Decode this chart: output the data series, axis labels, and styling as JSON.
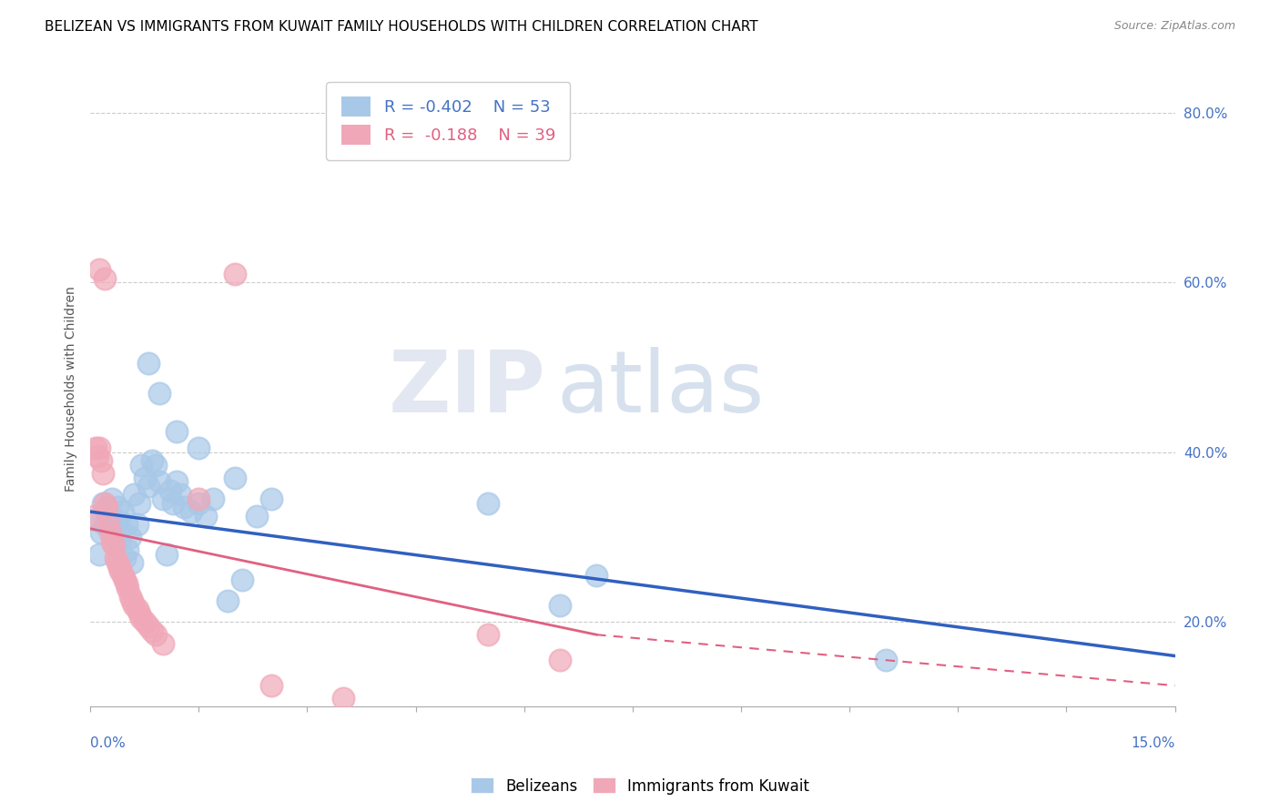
{
  "title": "BELIZEAN VS IMMIGRANTS FROM KUWAIT FAMILY HOUSEHOLDS WITH CHILDREN CORRELATION CHART",
  "source": "Source: ZipAtlas.com",
  "ylabel": "Family Households with Children",
  "xlim": [
    0.0,
    15.0
  ],
  "ylim": [
    10.0,
    85.0
  ],
  "yticks": [
    20.0,
    40.0,
    60.0,
    80.0
  ],
  "xticks": [
    0.0,
    1.5,
    3.0,
    4.5,
    6.0,
    7.5,
    9.0,
    10.5,
    12.0,
    13.5,
    15.0
  ],
  "legend1_r": "-0.402",
  "legend1_n": "53",
  "legend2_r": "-0.188",
  "legend2_n": "39",
  "blue_scatter_color": "#a8c8e8",
  "pink_scatter_color": "#f0a8b8",
  "blue_line_color": "#3060c0",
  "pink_line_color": "#e06080",
  "watermark_zip": "ZIP",
  "watermark_atlas": "atlas",
  "belizean_points": [
    [
      0.08,
      32.0
    ],
    [
      0.12,
      28.0
    ],
    [
      0.15,
      30.5
    ],
    [
      0.18,
      34.0
    ],
    [
      0.2,
      31.5
    ],
    [
      0.22,
      33.0
    ],
    [
      0.25,
      32.5
    ],
    [
      0.28,
      31.0
    ],
    [
      0.3,
      34.5
    ],
    [
      0.32,
      30.0
    ],
    [
      0.35,
      32.0
    ],
    [
      0.38,
      33.5
    ],
    [
      0.4,
      29.5
    ],
    [
      0.42,
      31.0
    ],
    [
      0.45,
      33.0
    ],
    [
      0.48,
      27.5
    ],
    [
      0.5,
      31.5
    ],
    [
      0.52,
      28.5
    ],
    [
      0.55,
      30.0
    ],
    [
      0.58,
      27.0
    ],
    [
      0.6,
      35.0
    ],
    [
      0.65,
      31.5
    ],
    [
      0.68,
      34.0
    ],
    [
      0.7,
      38.5
    ],
    [
      0.75,
      37.0
    ],
    [
      0.8,
      36.0
    ],
    [
      0.85,
      39.0
    ],
    [
      0.9,
      38.5
    ],
    [
      0.95,
      36.5
    ],
    [
      1.0,
      34.5
    ],
    [
      1.05,
      28.0
    ],
    [
      1.1,
      35.5
    ],
    [
      1.15,
      34.0
    ],
    [
      1.2,
      36.5
    ],
    [
      1.25,
      35.0
    ],
    [
      1.3,
      33.5
    ],
    [
      1.4,
      33.0
    ],
    [
      1.5,
      34.0
    ],
    [
      1.6,
      32.5
    ],
    [
      1.7,
      34.5
    ],
    [
      1.9,
      22.5
    ],
    [
      2.0,
      37.0
    ],
    [
      2.1,
      25.0
    ],
    [
      2.3,
      32.5
    ],
    [
      2.5,
      34.5
    ],
    [
      0.95,
      47.0
    ],
    [
      1.2,
      42.5
    ],
    [
      1.5,
      40.5
    ],
    [
      0.8,
      50.5
    ],
    [
      5.5,
      34.0
    ],
    [
      6.5,
      22.0
    ],
    [
      7.0,
      25.5
    ],
    [
      11.0,
      15.5
    ]
  ],
  "kuwait_points": [
    [
      0.05,
      32.5
    ],
    [
      0.08,
      40.5
    ],
    [
      0.1,
      39.5
    ],
    [
      0.12,
      40.5
    ],
    [
      0.15,
      39.0
    ],
    [
      0.18,
      37.5
    ],
    [
      0.2,
      34.0
    ],
    [
      0.22,
      33.5
    ],
    [
      0.25,
      32.0
    ],
    [
      0.28,
      30.5
    ],
    [
      0.3,
      29.5
    ],
    [
      0.32,
      29.0
    ],
    [
      0.35,
      27.5
    ],
    [
      0.38,
      27.0
    ],
    [
      0.4,
      26.5
    ],
    [
      0.42,
      26.0
    ],
    [
      0.45,
      25.5
    ],
    [
      0.48,
      25.0
    ],
    [
      0.5,
      24.5
    ],
    [
      0.52,
      24.0
    ],
    [
      0.55,
      23.0
    ],
    [
      0.58,
      22.5
    ],
    [
      0.6,
      22.0
    ],
    [
      0.65,
      21.5
    ],
    [
      0.68,
      21.0
    ],
    [
      0.7,
      20.5
    ],
    [
      0.75,
      20.0
    ],
    [
      0.8,
      19.5
    ],
    [
      0.85,
      19.0
    ],
    [
      0.9,
      18.5
    ],
    [
      1.0,
      17.5
    ],
    [
      0.12,
      61.5
    ],
    [
      2.0,
      61.0
    ],
    [
      1.5,
      34.5
    ],
    [
      2.5,
      12.5
    ],
    [
      3.5,
      11.0
    ],
    [
      5.5,
      18.5
    ],
    [
      6.5,
      15.5
    ],
    [
      0.2,
      60.5
    ]
  ],
  "title_fontsize": 11,
  "source_fontsize": 9,
  "axis_label_fontsize": 10,
  "tick_fontsize": 11,
  "legend_fontsize": 13
}
